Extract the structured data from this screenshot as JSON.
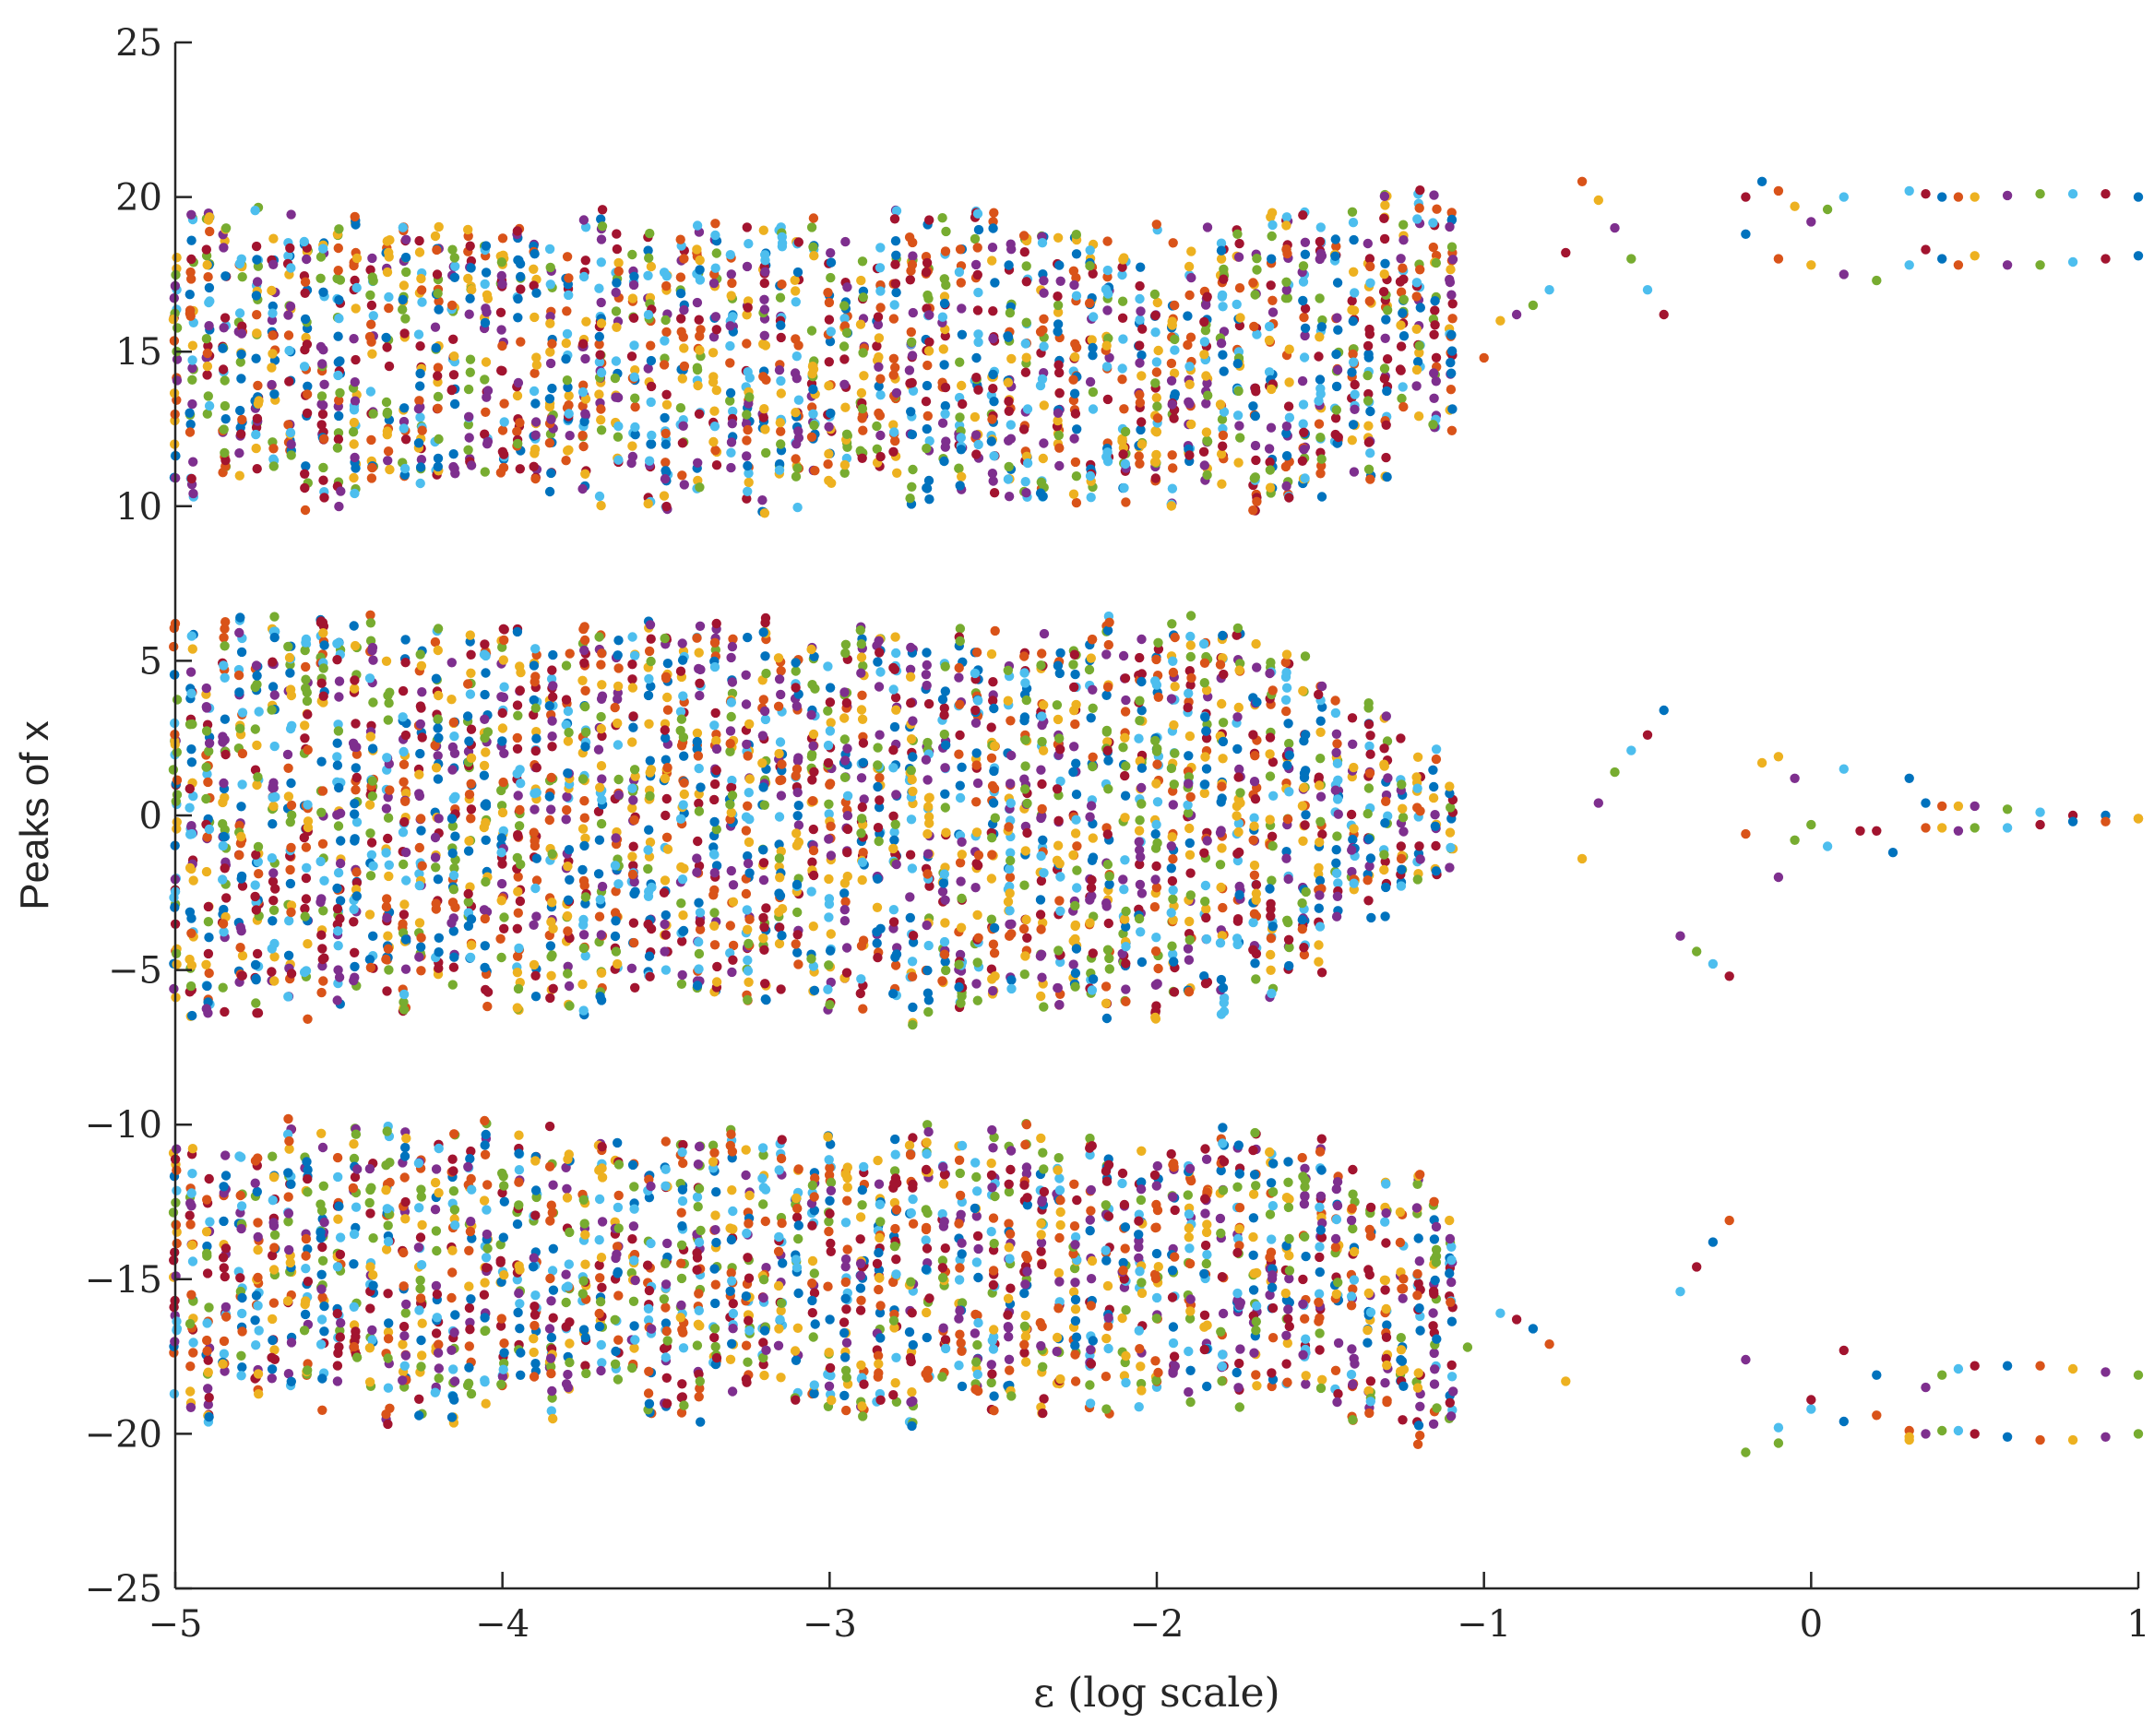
{
  "chart_data": {
    "type": "scatter",
    "xlabel": "ε (log scale)",
    "ylabel": "Peaks of x",
    "xlim": [
      -5,
      1
    ],
    "ylim": [
      -25,
      25
    ],
    "x_ticks": [
      -5,
      -4,
      -3,
      -2,
      -1,
      0,
      1
    ],
    "x_tick_labels": [
      "−5",
      "−4",
      "−3",
      "−2",
      "−1",
      "0",
      "1"
    ],
    "y_ticks": [
      -25,
      -20,
      -15,
      -10,
      -5,
      0,
      5,
      10,
      15,
      20,
      25
    ],
    "y_tick_labels": [
      "−25",
      "−20",
      "−15",
      "−10",
      "−5",
      "0",
      "5",
      "10",
      "15",
      "20",
      "25"
    ],
    "grid": false,
    "x_scale": "log",
    "colors": [
      "#0072BD",
      "#D95319",
      "#EDB120",
      "#7E2F8E",
      "#77AC30",
      "#4DBEEE",
      "#A2142F"
    ],
    "description_of_points": "Bifurcation diagram: peaks of x plotted against log10(epsilon). Chaotic dense bands for log10(eps) from -5 to about -1.1 (upper band ~10–19, middle band ~-6–6, lower band ~-19–-10), then sparse periodic branches for log10(eps) from about -1.1 to 1.",
    "chaotic_region": {
      "x_range": [
        -5,
        -1.1
      ],
      "bands": [
        {
          "name": "upper",
          "y_range": [
            10.5,
            19
          ]
        },
        {
          "name": "middle",
          "y_range": [
            -6,
            6
          ]
        },
        {
          "name": "lower",
          "y_range": [
            -19,
            -10.5
          ]
        }
      ]
    },
    "periodic_branches": [
      {
        "x": [
          -1.1,
          -1.0,
          -0.95,
          -0.9,
          -0.85,
          -0.8,
          -0.75
        ],
        "y": [
          14.3,
          14.8,
          16.0,
          16.2,
          16.5,
          17.0,
          18.2
        ]
      },
      {
        "x": [
          -0.7,
          -0.65,
          -0.6,
          -0.55,
          -0.5,
          -0.45
        ],
        "y": [
          20.5,
          19.9,
          19.0,
          18.0,
          17.0,
          16.2
        ]
      },
      {
        "x": [
          -0.7,
          -0.65,
          -0.6,
          -0.55,
          -0.5,
          -0.45
        ],
        "y": [
          -1.4,
          0.4,
          1.4,
          2.1,
          2.6,
          3.4
        ]
      },
      {
        "x": [
          -0.4,
          -0.35,
          -0.3,
          -0.25
        ],
        "y": [
          -3.9,
          -4.4,
          -4.8,
          -5.2
        ]
      },
      {
        "x": [
          -1.05,
          -0.95,
          -0.9,
          -0.85,
          -0.8,
          -0.75
        ],
        "y": [
          -17.2,
          -16.1,
          -16.3,
          -16.6,
          -17.1,
          -18.3
        ]
      },
      {
        "x": [
          -0.4,
          -0.35,
          -0.3,
          -0.25
        ],
        "y": [
          -15.4,
          -14.6,
          -13.8,
          -13.1
        ]
      },
      {
        "x": [
          -0.2,
          -0.15,
          -0.1,
          -0.05,
          0.0,
          0.05,
          0.1
        ],
        "y": [
          20.0,
          20.5,
          20.2,
          19.7,
          19.2,
          19.6,
          20.0
        ]
      },
      {
        "x": [
          -0.2,
          -0.1,
          0.0,
          0.1,
          0.2,
          0.3
        ],
        "y": [
          18.8,
          18.0,
          17.8,
          17.5,
          17.3,
          17.8
        ]
      },
      {
        "x": [
          -0.2,
          -0.1,
          -0.05,
          0.0,
          0.1,
          0.2,
          0.3
        ],
        "y": [
          -0.6,
          1.9,
          1.2,
          -0.3,
          1.5,
          -0.5,
          1.2
        ]
      },
      {
        "x": [
          -0.15,
          -0.1,
          -0.05,
          0.05,
          0.15,
          0.25
        ],
        "y": [
          1.7,
          -2.0,
          -0.8,
          -1.0,
          -0.5,
          -1.2
        ]
      },
      {
        "x": [
          -0.2,
          -0.1,
          0.0,
          0.1,
          0.2,
          0.3
        ],
        "y": [
          -17.6,
          -20.3,
          -19.2,
          -17.3,
          -18.1,
          -19.9
        ]
      },
      {
        "x": [
          -0.2,
          -0.1,
          0.0,
          0.1,
          0.2,
          0.3
        ],
        "y": [
          -20.6,
          -19.8,
          -18.9,
          -19.6,
          -19.4,
          -20.2
        ]
      },
      {
        "x": [
          0.3,
          0.35,
          0.4,
          0.45,
          0.5,
          0.6,
          0.7,
          0.8,
          0.9,
          1.0
        ],
        "y": [
          20.2,
          20.1,
          20.0,
          20.0,
          20.0,
          20.05,
          20.1,
          20.1,
          20.1,
          20.0
        ]
      },
      {
        "x": [
          0.35,
          0.4,
          0.45,
          0.5,
          0.6,
          0.7,
          0.8,
          0.9,
          1.0
        ],
        "y": [
          18.3,
          18.0,
          17.8,
          18.1,
          17.8,
          17.8,
          17.9,
          18.0,
          18.1
        ]
      },
      {
        "x": [
          0.35,
          0.4,
          0.45,
          0.5,
          0.6,
          0.7,
          0.8,
          0.9,
          1.0
        ],
        "y": [
          0.4,
          0.3,
          0.3,
          0.3,
          0.2,
          0.1,
          0.0,
          0.0,
          -0.1
        ]
      },
      {
        "x": [
          0.35,
          0.4,
          0.45,
          0.5,
          0.6,
          0.7,
          0.8,
          0.9,
          1.0
        ],
        "y": [
          -0.4,
          -0.4,
          -0.5,
          -0.4,
          -0.4,
          -0.3,
          -0.2,
          -0.2,
          -0.1
        ]
      },
      {
        "x": [
          0.3,
          0.35,
          0.4,
          0.45,
          0.5,
          0.6,
          0.7,
          0.8,
          0.9,
          1.0
        ],
        "y": [
          -20.1,
          -20.0,
          -19.9,
          -19.9,
          -20.0,
          -20.1,
          -20.2,
          -20.2,
          -20.1,
          -20.0
        ]
      },
      {
        "x": [
          0.35,
          0.4,
          0.45,
          0.5,
          0.6,
          0.7,
          0.8,
          0.9,
          1.0
        ],
        "y": [
          -18.5,
          -18.1,
          -17.9,
          -17.8,
          -17.8,
          -17.8,
          -17.9,
          -18.0,
          -18.1
        ]
      }
    ]
  }
}
